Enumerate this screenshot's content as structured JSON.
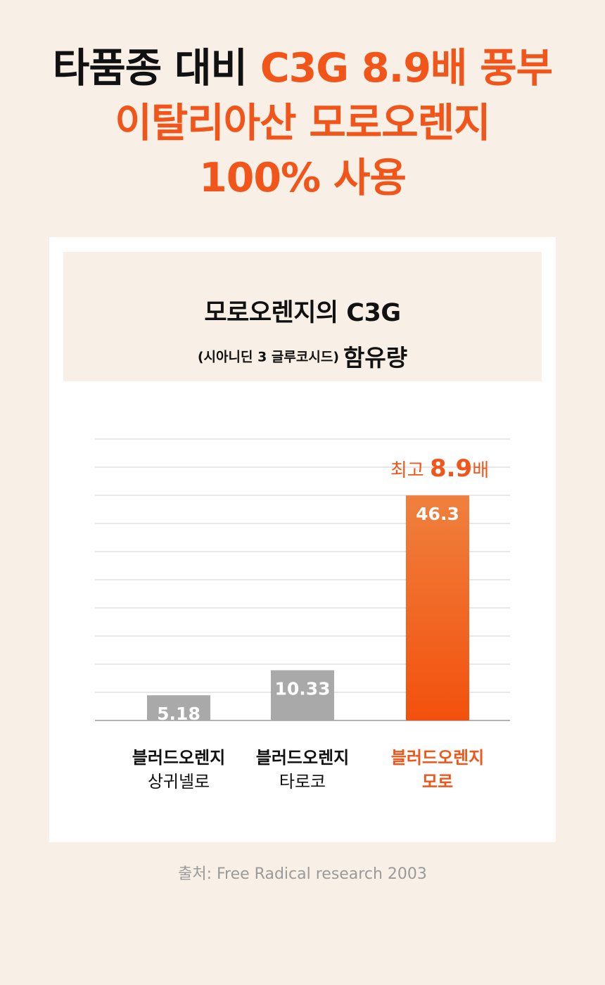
{
  "headline": {
    "line1_dark": "타품종 대비 ",
    "line1_accent": "C3G 8.9배 풍부",
    "line2": "이탈리아산 모로오렌지",
    "line3": "100% 사용"
  },
  "chart_header": {
    "title": "모로오렌지의 C3G",
    "subtitle": "(시아니딘 3 글루코시드)",
    "subtitle_end": "함유량"
  },
  "callout": {
    "prefix": "최고 ",
    "value": "8.9",
    "suffix": "배"
  },
  "colors": {
    "accent": "#f2551a",
    "gray_bar": "#a9a9a9",
    "background": "#f8efe6"
  },
  "chart_data": {
    "type": "bar",
    "categories": [
      "블러드오렌지 상귀넬로",
      "블러드오렌지 타로코",
      "블러드오렌지 모로"
    ],
    "category_lines": [
      [
        "블러드오렌지",
        "상귀넬로"
      ],
      [
        "블러드오렌지",
        "타로코"
      ],
      [
        "블러드오렌지",
        "모로"
      ]
    ],
    "values": [
      5.18,
      10.33,
      46.3
    ],
    "value_labels": [
      "5.18",
      "10.33",
      "46.3"
    ],
    "highlight_index": 2,
    "ylim": [
      0,
      57.9
    ],
    "grid": true,
    "xlabel": "",
    "ylabel": ""
  },
  "source": "출처: Free Radical research 2003"
}
